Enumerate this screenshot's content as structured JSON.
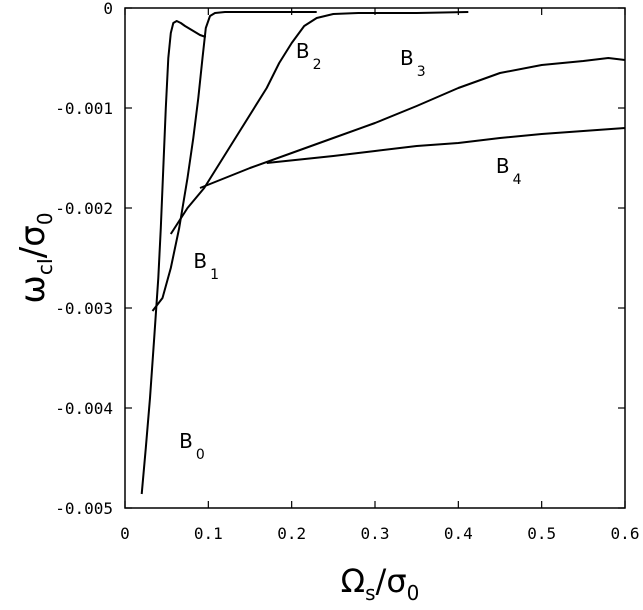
{
  "chart_data": {
    "type": "line",
    "title": "",
    "xlabel": {
      "symbol": "Ω",
      "sub": "s",
      "denom": "σ",
      "denom_sub": "0"
    },
    "ylabel": {
      "symbol": "ω",
      "sub": "cI",
      "denom": "σ",
      "denom_sub": "0"
    },
    "xlim": [
      0,
      0.6
    ],
    "ylim": [
      -0.005,
      0
    ],
    "grid": false,
    "legend": "none",
    "x_ticks": [
      0,
      0.1,
      0.2,
      0.3,
      0.4,
      0.5,
      0.6
    ],
    "x_tick_labels": [
      "0",
      "0.1",
      "0.2",
      "0.3",
      "0.4",
      "0.5",
      "0.6"
    ],
    "y_ticks": [
      0,
      -0.001,
      -0.002,
      -0.003,
      -0.004,
      -0.005
    ],
    "y_tick_labels": [
      "0",
      "-0.001",
      "-0.002",
      "-0.003",
      "-0.004",
      "-0.005"
    ],
    "series": [
      {
        "name": "B0",
        "color": "#000000",
        "points": [
          [
            0.02,
            -0.00486
          ],
          [
            0.025,
            -0.0044
          ],
          [
            0.03,
            -0.0039
          ],
          [
            0.035,
            -0.0033
          ],
          [
            0.04,
            -0.0027
          ],
          [
            0.043,
            -0.0022
          ],
          [
            0.046,
            -0.0016
          ],
          [
            0.049,
            -0.001
          ],
          [
            0.052,
            -0.0005
          ],
          [
            0.055,
            -0.00025
          ],
          [
            0.058,
            -0.00015
          ],
          [
            0.062,
            -0.00013
          ],
          [
            0.067,
            -0.00015
          ],
          [
            0.072,
            -0.00018
          ],
          [
            0.08,
            -0.00022
          ],
          [
            0.09,
            -0.00027
          ],
          [
            0.097,
            -0.00029
          ]
        ]
      },
      {
        "name": "B1",
        "color": "#000000",
        "points": [
          [
            0.033,
            -0.00303
          ],
          [
            0.045,
            -0.0029
          ],
          [
            0.055,
            -0.0026
          ],
          [
            0.065,
            -0.0022
          ],
          [
            0.075,
            -0.0017
          ],
          [
            0.082,
            -0.0013
          ],
          [
            0.088,
            -0.0009
          ],
          [
            0.093,
            -0.0005
          ],
          [
            0.097,
            -0.0002
          ],
          [
            0.102,
            -8e-05
          ],
          [
            0.108,
            -5e-05
          ],
          [
            0.12,
            -4e-05
          ],
          [
            0.15,
            -4e-05
          ],
          [
            0.2,
            -4e-05
          ],
          [
            0.23,
            -4e-05
          ]
        ]
      },
      {
        "name": "B2",
        "color": "#000000",
        "points": [
          [
            0.055,
            -0.00226
          ],
          [
            0.075,
            -0.002
          ],
          [
            0.095,
            -0.0018
          ],
          [
            0.11,
            -0.0016
          ],
          [
            0.125,
            -0.0014
          ],
          [
            0.14,
            -0.0012
          ],
          [
            0.155,
            -0.001
          ],
          [
            0.17,
            -0.0008
          ],
          [
            0.185,
            -0.00055
          ],
          [
            0.2,
            -0.00035
          ],
          [
            0.215,
            -0.00018
          ],
          [
            0.23,
            -0.0001
          ],
          [
            0.25,
            -6e-05
          ],
          [
            0.28,
            -5e-05
          ],
          [
            0.3,
            -5e-05
          ],
          [
            0.35,
            -5e-05
          ],
          [
            0.412,
            -4e-05
          ]
        ]
      },
      {
        "name": "B3",
        "color": "#000000",
        "points": [
          [
            0.09,
            -0.0018
          ],
          [
            0.12,
            -0.0017
          ],
          [
            0.15,
            -0.0016
          ],
          [
            0.2,
            -0.00145
          ],
          [
            0.25,
            -0.0013
          ],
          [
            0.3,
            -0.00115
          ],
          [
            0.35,
            -0.00098
          ],
          [
            0.4,
            -0.0008
          ],
          [
            0.45,
            -0.00065
          ],
          [
            0.5,
            -0.00057
          ],
          [
            0.55,
            -0.00053
          ],
          [
            0.58,
            -0.0005
          ],
          [
            0.6,
            -0.00052
          ]
        ]
      },
      {
        "name": "B4",
        "color": "#000000",
        "points": [
          [
            0.17,
            -0.00155
          ],
          [
            0.25,
            -0.00148
          ],
          [
            0.3,
            -0.00143
          ],
          [
            0.35,
            -0.00138
          ],
          [
            0.4,
            -0.00135
          ],
          [
            0.45,
            -0.0013
          ],
          [
            0.5,
            -0.00126
          ],
          [
            0.55,
            -0.00123
          ],
          [
            0.6,
            -0.0012
          ]
        ]
      }
    ],
    "annotations": [
      {
        "main": "B",
        "sub": "0",
        "x": 0.065,
        "y": -0.0044
      },
      {
        "main": "B",
        "sub": "1",
        "x": 0.082,
        "y": -0.0026
      },
      {
        "main": "B",
        "sub": "2",
        "x": 0.205,
        "y": -0.0005
      },
      {
        "main": "B",
        "sub": "3",
        "x": 0.33,
        "y": -0.00057
      },
      {
        "main": "B",
        "sub": "4",
        "x": 0.445,
        "y": -0.00165
      }
    ]
  }
}
